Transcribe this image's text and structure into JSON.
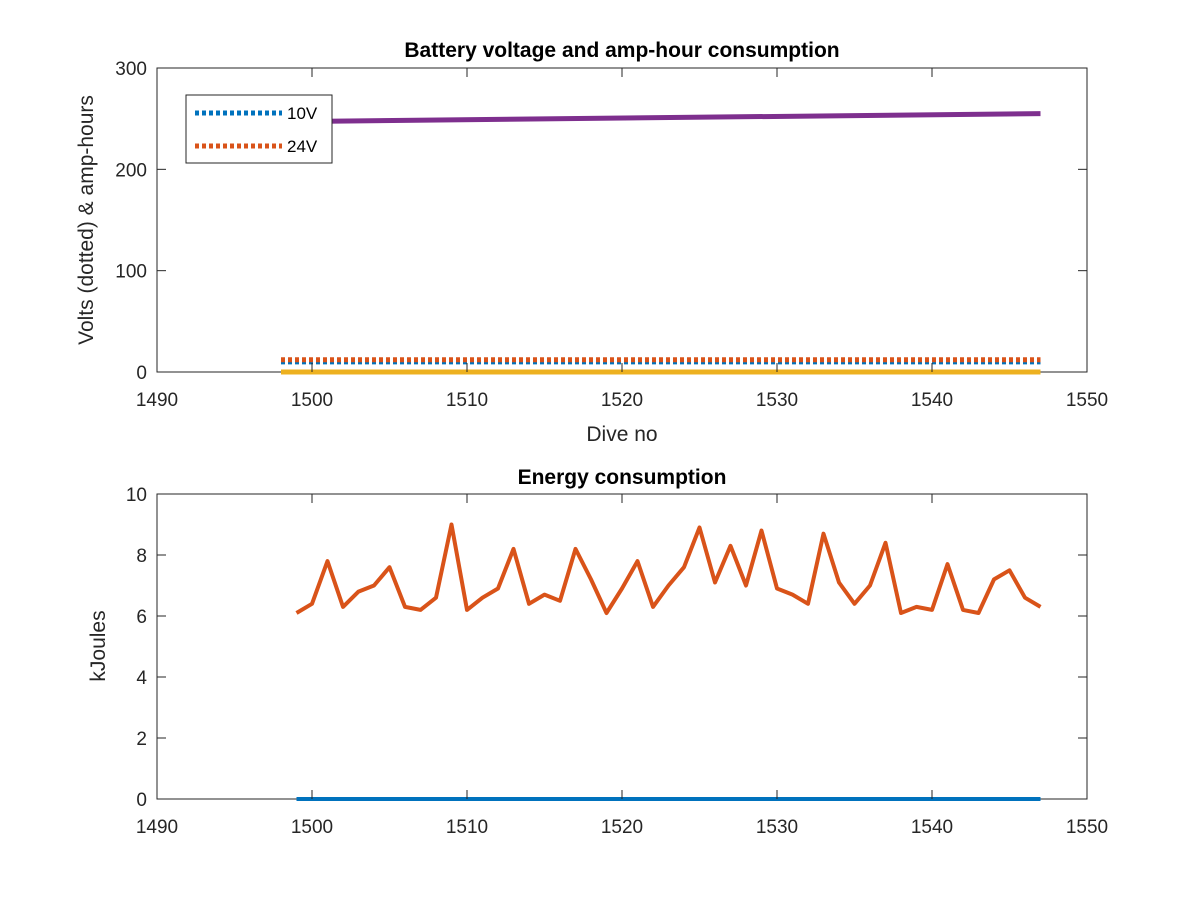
{
  "chart_data": [
    {
      "type": "line",
      "title": "Battery voltage and amp-hour consumption",
      "xlabel": "Dive no",
      "ylabel": "Volts (dotted) & amp-hours",
      "xlim": [
        1490,
        1550
      ],
      "ylim": [
        0,
        300
      ],
      "xticks": [
        1490,
        1500,
        1510,
        1520,
        1530,
        1540,
        1550
      ],
      "yticks": [
        0,
        100,
        200,
        300
      ],
      "grid": false,
      "legend_position": "top-left",
      "series": [
        {
          "name": "10V",
          "style": "dotted",
          "color": "#0072BD",
          "x": [
            1498,
            1547
          ],
          "y": [
            10,
            10
          ],
          "in_legend": true
        },
        {
          "name": "24V",
          "style": "dotted",
          "color": "#D95319",
          "x": [
            1498,
            1547
          ],
          "y": [
            12,
            12
          ],
          "in_legend": true
        },
        {
          "style": "solid",
          "color": "#EDB120",
          "x": [
            1498,
            1547
          ],
          "y": [
            0,
            0
          ],
          "in_legend": false
        },
        {
          "style": "solid",
          "color": "#7E2F8E",
          "x": [
            1498,
            1547
          ],
          "y": [
            247,
            255
          ],
          "in_legend": false
        }
      ]
    },
    {
      "type": "line",
      "title": "Energy consumption",
      "xlabel": "",
      "ylabel": "kJoules",
      "xlim": [
        1490,
        1550
      ],
      "ylim": [
        0,
        10
      ],
      "xticks": [
        1490,
        1500,
        1510,
        1520,
        1530,
        1540,
        1550
      ],
      "yticks": [
        0,
        2,
        4,
        6,
        8,
        10
      ],
      "grid": false,
      "series": [
        {
          "style": "solid",
          "color": "#0072BD",
          "x": [
            1499,
            1547
          ],
          "y": [
            0,
            0
          ]
        },
        {
          "style": "solid",
          "color": "#D95319",
          "x": [
            1499,
            1500,
            1501,
            1502,
            1503,
            1504,
            1505,
            1506,
            1507,
            1508,
            1509,
            1510,
            1511,
            1512,
            1513,
            1514,
            1515,
            1516,
            1517,
            1518,
            1519,
            1520,
            1521,
            1522,
            1523,
            1524,
            1525,
            1526,
            1527,
            1528,
            1529,
            1530,
            1531,
            1532,
            1533,
            1534,
            1535,
            1536,
            1537,
            1538,
            1539,
            1540,
            1541,
            1542,
            1543,
            1544,
            1545,
            1546,
            1547
          ],
          "y": [
            6.1,
            6.4,
            7.8,
            6.3,
            6.8,
            7.0,
            7.6,
            6.3,
            6.2,
            6.6,
            9.0,
            6.2,
            6.6,
            6.9,
            8.2,
            6.4,
            6.7,
            6.5,
            8.2,
            7.2,
            6.1,
            6.9,
            7.8,
            6.3,
            7.0,
            7.6,
            8.9,
            7.1,
            8.3,
            7.0,
            8.8,
            6.9,
            6.7,
            6.4,
            8.7,
            7.1,
            6.4,
            7.0,
            8.4,
            6.1,
            6.3,
            6.2,
            7.7,
            6.2,
            6.1,
            7.2,
            7.5,
            6.6,
            6.3
          ]
        }
      ]
    }
  ]
}
